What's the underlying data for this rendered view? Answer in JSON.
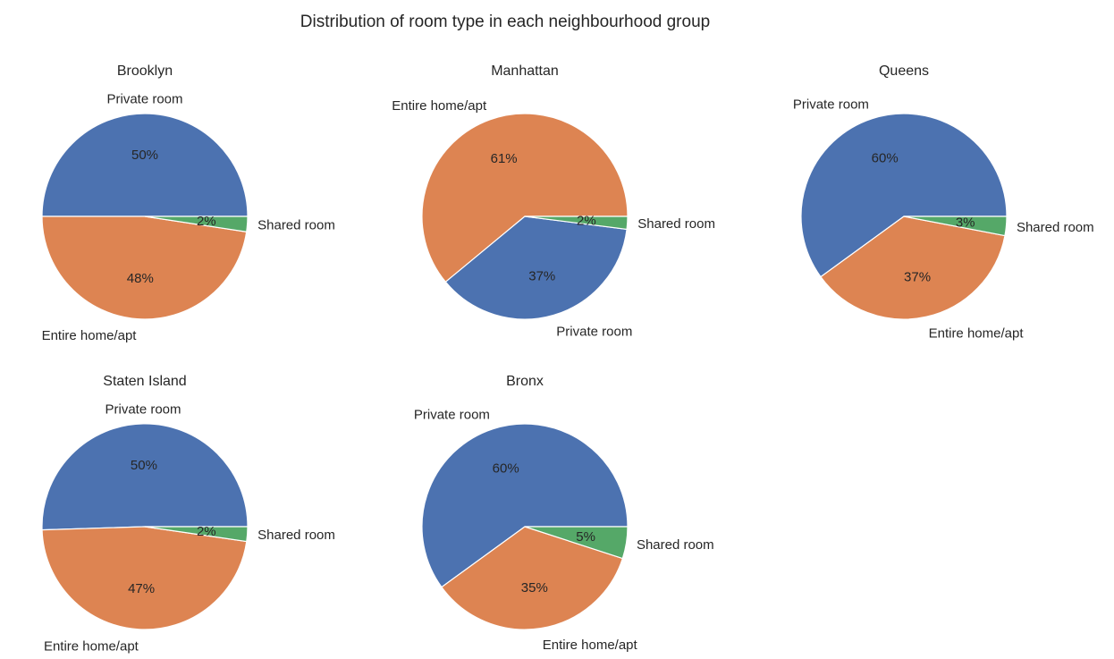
{
  "chart_data": {
    "type": "pie",
    "title": "Distribution of room type in each neighbourhood group",
    "colors": {
      "Private room": "#4c72b0",
      "Entire home/apt": "#dd8452",
      "Shared room": "#55a868"
    },
    "charts": [
      {
        "title": "Brooklyn",
        "slices": [
          {
            "label": "Private room",
            "value": 50.0,
            "pct_label": "50%"
          },
          {
            "label": "Entire home/apt",
            "value": 47.6,
            "pct_label": "48%"
          },
          {
            "label": "Shared room",
            "value": 2.4,
            "pct_label": "2%"
          }
        ]
      },
      {
        "title": "Manhattan",
        "slices": [
          {
            "label": "Entire home/apt",
            "value": 61.0,
            "pct_label": "61%"
          },
          {
            "label": "Private room",
            "value": 37.0,
            "pct_label": "37%"
          },
          {
            "label": "Shared room",
            "value": 2.0,
            "pct_label": "2%"
          }
        ]
      },
      {
        "title": "Queens",
        "slices": [
          {
            "label": "Private room",
            "value": 60.0,
            "pct_label": "60%"
          },
          {
            "label": "Entire home/apt",
            "value": 37.0,
            "pct_label": "37%"
          },
          {
            "label": "Shared room",
            "value": 3.0,
            "pct_label": "3%"
          }
        ]
      },
      {
        "title": "Staten Island",
        "slices": [
          {
            "label": "Private room",
            "value": 50.5,
            "pct_label": "50%"
          },
          {
            "label": "Entire home/apt",
            "value": 47.2,
            "pct_label": "47%"
          },
          {
            "label": "Shared room",
            "value": 2.3,
            "pct_label": "2%"
          }
        ]
      },
      {
        "title": "Bronx",
        "slices": [
          {
            "label": "Private room",
            "value": 60.0,
            "pct_label": "60%"
          },
          {
            "label": "Entire home/apt",
            "value": 35.0,
            "pct_label": "35%"
          },
          {
            "label": "Shared room",
            "value": 5.0,
            "pct_label": "5%"
          }
        ]
      }
    ]
  }
}
